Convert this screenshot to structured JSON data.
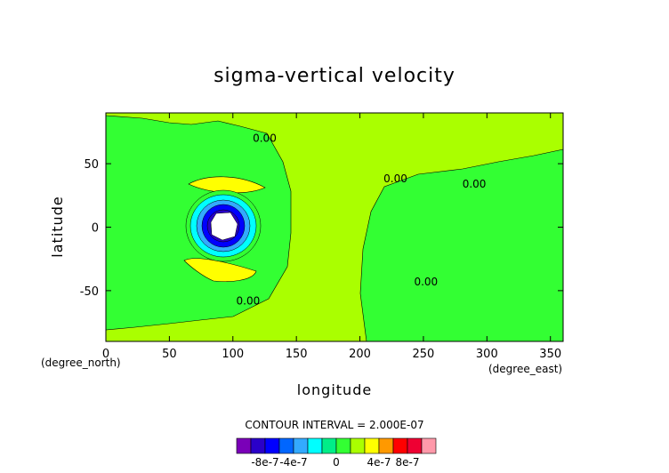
{
  "chart_data": {
    "type": "heatmap",
    "title": "sigma-vertical velocity",
    "xlabel": "longitude",
    "ylabel": "latitude",
    "x_unit_label": "(degree_east)",
    "y_unit_label": "(degree_north)",
    "xlim": [
      0,
      360
    ],
    "ylim": [
      -90,
      90
    ],
    "x_ticks": [
      0,
      50,
      100,
      150,
      200,
      250,
      300,
      350
    ],
    "y_ticks": [
      -50,
      0,
      50
    ],
    "contour_interval_text": "CONTOUR INTERVAL = 2.000E-07",
    "contour_labels": [
      {
        "text": "0.00",
        "x": 125,
        "y": 70
      },
      {
        "text": "0.00",
        "x": 112,
        "y": -58
      },
      {
        "text": "0.00",
        "x": 228,
        "y": 38
      },
      {
        "text": "0.00",
        "x": 290,
        "y": 34
      },
      {
        "text": "0.00",
        "x": 252,
        "y": -43
      }
    ],
    "fields": {
      "background_level": "0",
      "regions": [
        {
          "name": "upper-yellow-band",
          "level": "4e-7",
          "center": [
            100,
            36
          ],
          "size": [
            52,
            10
          ]
        },
        {
          "name": "lower-yellow-band",
          "level": "4e-7",
          "center": [
            97,
            -32
          ],
          "size": [
            50,
            12
          ]
        },
        {
          "name": "downdraft-core",
          "center": [
            92,
            2
          ],
          "levels": [
            "-2e-7",
            "-4e-7",
            "-6e-7",
            "-8e-7",
            "-10e-7",
            "<-10e-7"
          ]
        },
        {
          "name": "east-yellow-region",
          "level": "2e-7",
          "extent_lon": [
            205,
            355
          ],
          "extent_lat": [
            -85,
            55
          ]
        },
        {
          "name": "west-yellow-region",
          "level": "2e-7",
          "extent_lon": [
            0,
            170
          ],
          "extent_lat": [
            -85,
            85
          ]
        }
      ]
    },
    "colorbar": {
      "colors": [
        "#7a00b8",
        "#2a00c8",
        "#0000ff",
        "#0066ff",
        "#33aaff",
        "#00ffff",
        "#00ee88",
        "#33ff33",
        "#aaff00",
        "#ffff00",
        "#ff9900",
        "#ff0000",
        "#ee0033",
        "#ff99aa"
      ],
      "tick_labels": [
        "-8e-7",
        "-4e-7",
        "0",
        "4e-7",
        "8e-7"
      ]
    }
  },
  "colors": {
    "green": "#33ff33",
    "yellow": "#aaff00",
    "bright_yellow": "#ffff00",
    "cyan": "#00ffff",
    "light_blue": "#33aaff",
    "blue": "#0000ff",
    "indigo": "#2a00c8",
    "purple": "#7a00b8",
    "white": "#ffffff"
  }
}
